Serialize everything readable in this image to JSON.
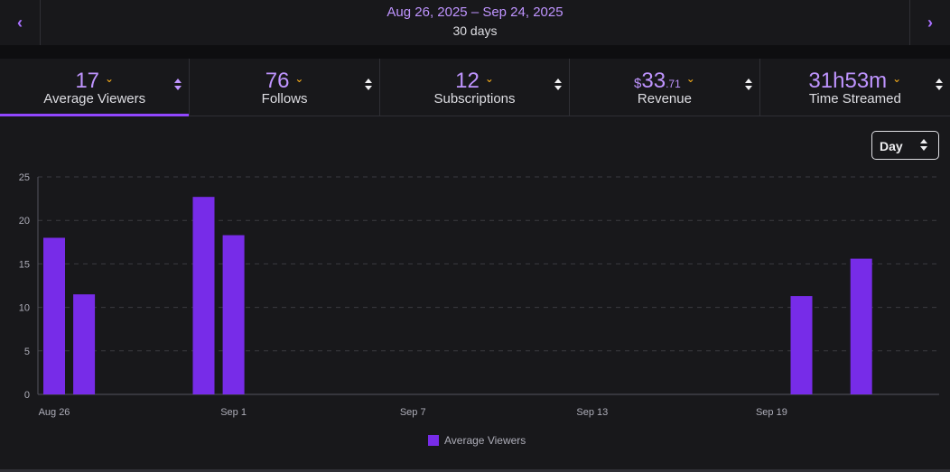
{
  "header": {
    "prev_label": "‹",
    "next_label": "›",
    "date_range": "Aug 26, 2025 – Sep 24, 2025",
    "days": "30 days"
  },
  "metrics": [
    {
      "value": "17",
      "label": "Average Viewers",
      "active": true
    },
    {
      "value": "76",
      "label": "Follows"
    },
    {
      "value": "12",
      "label": "Subscriptions"
    },
    {
      "currency": "$",
      "value": "33",
      "cents": ".71",
      "label": "Revenue"
    },
    {
      "value": "31h53m",
      "label": "Time Streamed"
    }
  ],
  "granularity": {
    "selected": "Day"
  },
  "colors": {
    "accent": "#9147ff",
    "bar": "#772ce8",
    "value_text": "#bf94ff",
    "chevron": "#ffb31a"
  },
  "chart_data": {
    "type": "bar",
    "title": "",
    "series": [
      {
        "name": "Average Viewers",
        "values": [
          18,
          11.5,
          0,
          0,
          0,
          22.7,
          18.3,
          0,
          0,
          0,
          0,
          0,
          0,
          0,
          0,
          0,
          0,
          0,
          0,
          0,
          0,
          0,
          0,
          0,
          0,
          11.3,
          0,
          15.6,
          0,
          0
        ]
      }
    ],
    "categories": [
      "Aug 26",
      "Aug 27",
      "Aug 28",
      "Aug 29",
      "Aug 30",
      "Aug 31",
      "Sep 1",
      "Sep 2",
      "Sep 3",
      "Sep 4",
      "Sep 5",
      "Sep 6",
      "Sep 7",
      "Sep 8",
      "Sep 9",
      "Sep 10",
      "Sep 11",
      "Sep 12",
      "Sep 13",
      "Sep 14",
      "Sep 15",
      "Sep 16",
      "Sep 17",
      "Sep 18",
      "Sep 19",
      "Sep 20",
      "Sep 21",
      "Sep 22",
      "Sep 23",
      "Sep 24"
    ],
    "x_tick_labels": [
      "Aug 26",
      "Sep 1",
      "Sep 7",
      "Sep 13",
      "Sep 19"
    ],
    "y_ticks": [
      0,
      5,
      10,
      15,
      20,
      25
    ],
    "ylim": [
      0,
      25
    ],
    "xlabel": "",
    "ylabel": "",
    "legend": "bottom-center",
    "grid": true
  }
}
